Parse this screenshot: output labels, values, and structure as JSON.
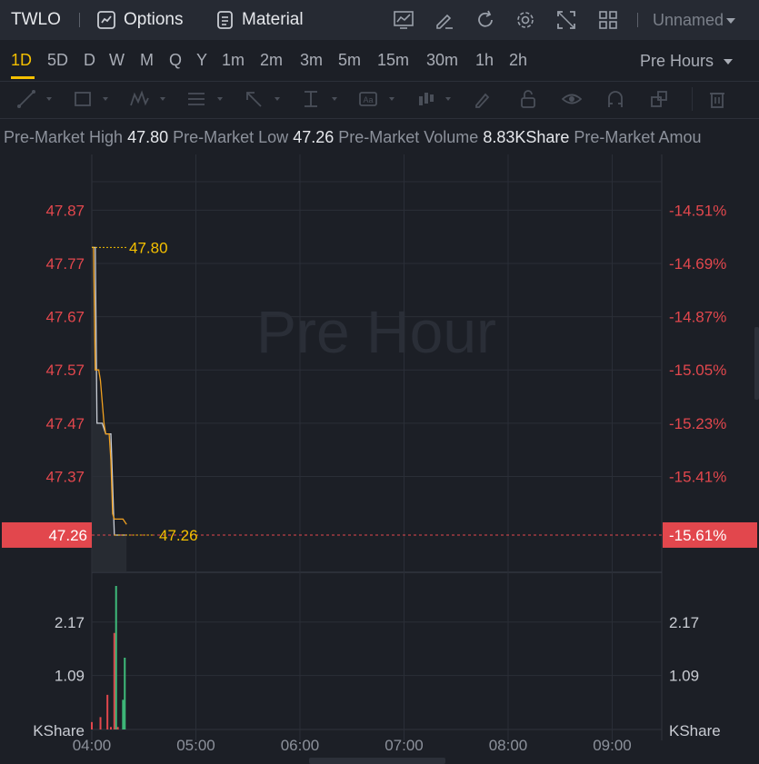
{
  "topbar": {
    "ticker": "TWLO",
    "options_label": "Options",
    "material_label": "Material",
    "layout_name": "Unnamed"
  },
  "periods": [
    "1D",
    "5D",
    "D",
    "W",
    "M",
    "Q",
    "Y",
    "1m",
    "2m",
    "3m",
    "5m",
    "15m",
    "30m",
    "1h",
    "2h"
  ],
  "active_period": "1D",
  "session_select": "Pre Hours",
  "info": {
    "high_label": "Pre-Market High",
    "high_value": "47.80",
    "low_label": "Pre-Market Low",
    "low_value": "47.26",
    "volume_label": "Pre-Market Volume",
    "volume_value": "8.83KShare",
    "amount_label": "Pre-Market Amou"
  },
  "colors": {
    "up": "#e2474d",
    "down": "#3ebb7a",
    "price_line": "#f0a020",
    "avg_line": "#c8ccd4",
    "highlight": "#f5c000",
    "accent": "#f5c000"
  },
  "chart_data": {
    "type": "line",
    "title": "",
    "watermark": "Pre Hour",
    "x_ticks": [
      "04:00",
      "05:00",
      "06:00",
      "07:00",
      "08:00",
      "09:00"
    ],
    "price_axis": {
      "ticks": [
        "47.87",
        "47.77",
        "47.67",
        "47.57",
        "47.47",
        "47.37"
      ],
      "ylim": [
        47.19,
        47.915
      ],
      "current": "47.26"
    },
    "pct_axis": {
      "ticks": [
        "-14.51%",
        "-14.69%",
        "-14.87%",
        "-15.05%",
        "-15.23%",
        "-15.41%"
      ],
      "current": "-15.61%"
    },
    "high_marker": "47.80",
    "low_marker": "47.26",
    "series": [
      {
        "name": "",
        "x": [
          "04:00",
          "04:01",
          "04:02",
          "04:04",
          "04:05",
          "04:07",
          "04:08",
          "04:10",
          "04:11",
          "04:12",
          "04:13",
          "04:15",
          "04:18",
          "04:20"
        ],
        "values": [
          47.8,
          47.8,
          47.57,
          47.57,
          47.55,
          47.47,
          47.45,
          47.45,
          47.4,
          47.3,
          47.29,
          47.29,
          47.29,
          47.28
        ]
      },
      {
        "name": "",
        "x": [
          "04:00",
          "04:02",
          "04:03",
          "04:06",
          "04:08",
          "04:11",
          "04:13",
          "04:18",
          "04:20"
        ],
        "values": [
          47.8,
          47.8,
          47.47,
          47.47,
          47.45,
          47.45,
          47.26,
          47.26,
          47.26
        ]
      }
    ],
    "volume": {
      "ylabel": "KShare",
      "ticks": [
        "2.17",
        "1.09"
      ],
      "ylim": [
        0,
        2.9
      ],
      "bars": [
        {
          "x": "04:00",
          "value": 0.15,
          "dir": "up"
        },
        {
          "x": "04:05",
          "value": 0.25,
          "dir": "up"
        },
        {
          "x": "04:09",
          "value": 0.7,
          "dir": "up"
        },
        {
          "x": "04:11",
          "value": 0.05,
          "dir": "up"
        },
        {
          "x": "04:13",
          "value": 1.95,
          "dir": "up"
        },
        {
          "x": "04:14",
          "value": 2.9,
          "dir": "down"
        },
        {
          "x": "04:15",
          "value": 0.05,
          "dir": "up"
        },
        {
          "x": "04:18",
          "value": 0.6,
          "dir": "down"
        },
        {
          "x": "04:19",
          "value": 1.45,
          "dir": "down"
        }
      ]
    }
  }
}
